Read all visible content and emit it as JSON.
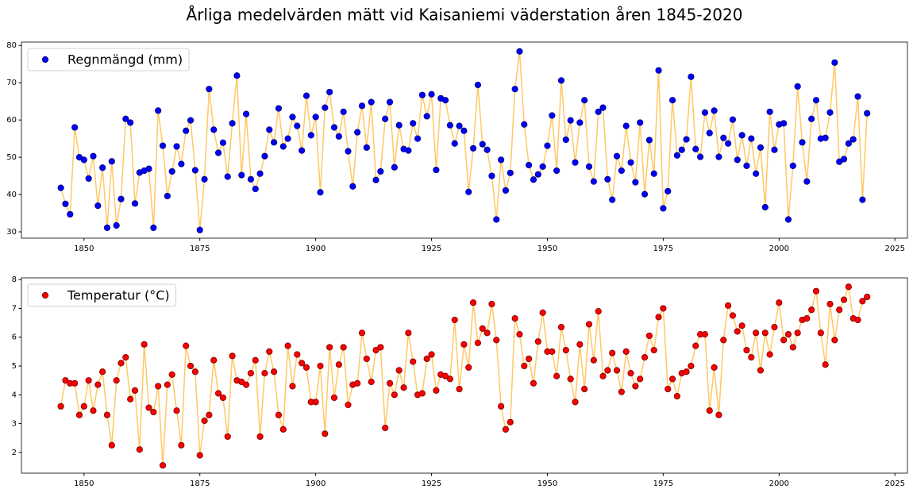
{
  "title": "Årliga medelvärden mätt vid Kaisaniemi väderstation åren 1845-2020",
  "chart_data": [
    {
      "type": "line",
      "legend": "upper left",
      "x": [
        1845,
        1846,
        1847,
        1848,
        1849,
        1850,
        1851,
        1852,
        1853,
        1854,
        1855,
        1856,
        1857,
        1858,
        1859,
        1860,
        1861,
        1862,
        1863,
        1864,
        1865,
        1866,
        1867,
        1868,
        1869,
        1870,
        1871,
        1872,
        1873,
        1874,
        1875,
        1876,
        1877,
        1878,
        1879,
        1880,
        1881,
        1882,
        1883,
        1884,
        1885,
        1886,
        1887,
        1888,
        1889,
        1890,
        1891,
        1892,
        1893,
        1894,
        1895,
        1896,
        1897,
        1898,
        1899,
        1900,
        1901,
        1902,
        1903,
        1904,
        1905,
        1906,
        1907,
        1908,
        1909,
        1910,
        1911,
        1912,
        1913,
        1914,
        1915,
        1916,
        1917,
        1918,
        1919,
        1920,
        1921,
        1922,
        1923,
        1924,
        1925,
        1926,
        1927,
        1928,
        1929,
        1930,
        1931,
        1932,
        1933,
        1934,
        1935,
        1936,
        1937,
        1938,
        1939,
        1940,
        1941,
        1942,
        1943,
        1944,
        1945,
        1946,
        1947,
        1948,
        1949,
        1950,
        1951,
        1952,
        1953,
        1954,
        1955,
        1956,
        1957,
        1958,
        1959,
        1960,
        1961,
        1962,
        1963,
        1964,
        1965,
        1966,
        1967,
        1968,
        1969,
        1970,
        1971,
        1972,
        1973,
        1974,
        1975,
        1976,
        1977,
        1978,
        1979,
        1980,
        1981,
        1982,
        1983,
        1984,
        1985,
        1986,
        1987,
        1988,
        1989,
        1990,
        1991,
        1992,
        1993,
        1994,
        1995,
        1996,
        1997,
        1998,
        1999,
        2000,
        2001,
        2002,
        2003,
        2004,
        2005,
        2006,
        2007,
        2008,
        2009,
        2010,
        2011,
        2012,
        2013,
        2014,
        2015,
        2016,
        2017,
        2018,
        2019
      ],
      "series": [
        {
          "name": "Regnmängd (mm)",
          "color": "#0000ff",
          "edge_color": "#00008b",
          "line_color": "#ffc864",
          "values": [
            41.8,
            37.5,
            34.7,
            58,
            50,
            49.3,
            44.3,
            50.3,
            37,
            47.2,
            31.1,
            48.9,
            31.7,
            38.8,
            60.3,
            59.3,
            37.6,
            45.9,
            46.4,
            46.9,
            31.1,
            62.5,
            53.1,
            39.6,
            46.2,
            52.9,
            48.2,
            57.1,
            59.9,
            46.5,
            30.5,
            44.1,
            68.3,
            57.4,
            51.2,
            53.9,
            44.8,
            59.1,
            71.9,
            45.2,
            61.6,
            44.1,
            41.5,
            45.6,
            50.3,
            57.4,
            54,
            63.1,
            52.9,
            55,
            60.8,
            58.4,
            51.8,
            66.5,
            55.9,
            60.8,
            40.6,
            63.3,
            67.5,
            58,
            55.6,
            62.2,
            51.6,
            42.2,
            56.7,
            63.8,
            52.6,
            64.8,
            43.9,
            46.2,
            60.3,
            64.8,
            47.3,
            58.6,
            52.2,
            51.8,
            59.1,
            55,
            66.7,
            61,
            66.9,
            46.6,
            65.8,
            65.3,
            58.6,
            53.7,
            58.4,
            57.1,
            40.7,
            52.4,
            69.4,
            53.5,
            52,
            45,
            33.3,
            49.3,
            41.1,
            45.8,
            68.3,
            78.4,
            58.8,
            47.9,
            44,
            45.4,
            47.5,
            53.1,
            61.2,
            46.4,
            70.6,
            54.7,
            59.9,
            48.6,
            59.3,
            65.3,
            47.5,
            43.5,
            62.2,
            63.3,
            44.1,
            38.6,
            50.3,
            46.4,
            58.4,
            48.6,
            43.3,
            59.3,
            40.1,
            54.6,
            45.6,
            73.3,
            36.3,
            40.9,
            65.3,
            50.5,
            52,
            54.8,
            71.6,
            52.2,
            50.1,
            62,
            56.5,
            62.5,
            50.1,
            55.2,
            53.7,
            60.1,
            49.3,
            55.9,
            47.7,
            55,
            45.6,
            52.6,
            36.6,
            62.2,
            52,
            58.8,
            59.1,
            33.3,
            47.7,
            69,
            54,
            43.5,
            60.3,
            65.3,
            55,
            55.2,
            62,
            75.4,
            48.8,
            49.5,
            53.7,
            54.8,
            66.3,
            38.6,
            61.8
          ]
        }
      ],
      "xlim": [
        1836.5,
        2027.7
      ],
      "xticks": [
        1850,
        1875,
        1900,
        1925,
        1950,
        1975,
        2000,
        2025
      ],
      "ylim": [
        28.3,
        80.9
      ],
      "yticks": [
        30,
        40,
        50,
        60,
        70,
        80
      ]
    },
    {
      "type": "line",
      "legend": "upper left",
      "x": [
        1845,
        1846,
        1847,
        1848,
        1849,
        1850,
        1851,
        1852,
        1853,
        1854,
        1855,
        1856,
        1857,
        1858,
        1859,
        1860,
        1861,
        1862,
        1863,
        1864,
        1865,
        1866,
        1867,
        1868,
        1869,
        1870,
        1871,
        1872,
        1873,
        1874,
        1875,
        1876,
        1877,
        1878,
        1879,
        1880,
        1881,
        1882,
        1883,
        1884,
        1885,
        1886,
        1887,
        1888,
        1889,
        1890,
        1891,
        1892,
        1893,
        1894,
        1895,
        1896,
        1897,
        1898,
        1899,
        1900,
        1901,
        1902,
        1903,
        1904,
        1905,
        1906,
        1907,
        1908,
        1909,
        1910,
        1911,
        1912,
        1913,
        1914,
        1915,
        1916,
        1917,
        1918,
        1919,
        1920,
        1921,
        1922,
        1923,
        1924,
        1925,
        1926,
        1927,
        1928,
        1929,
        1930,
        1931,
        1932,
        1933,
        1934,
        1935,
        1936,
        1937,
        1938,
        1939,
        1940,
        1941,
        1942,
        1943,
        1944,
        1945,
        1946,
        1947,
        1948,
        1949,
        1950,
        1951,
        1952,
        1953,
        1954,
        1955,
        1956,
        1957,
        1958,
        1959,
        1960,
        1961,
        1962,
        1963,
        1964,
        1965,
        1966,
        1967,
        1968,
        1969,
        1970,
        1971,
        1972,
        1973,
        1974,
        1975,
        1976,
        1977,
        1978,
        1979,
        1980,
        1981,
        1982,
        1983,
        1984,
        1985,
        1986,
        1987,
        1988,
        1989,
        1990,
        1991,
        1992,
        1993,
        1994,
        1995,
        1996,
        1997,
        1998,
        1999,
        2000,
        2001,
        2002,
        2003,
        2004,
        2005,
        2006,
        2007,
        2008,
        2009,
        2010,
        2011,
        2012,
        2013,
        2014,
        2015,
        2016,
        2017,
        2018,
        2019
      ],
      "series": [
        {
          "name": "Temperatur (°C)",
          "color": "#ff0000",
          "edge_color": "#8b0000",
          "line_color": "#ffc864",
          "values": [
            3.6,
            4.5,
            4.4,
            4.4,
            3.3,
            3.6,
            4.5,
            3.45,
            4.35,
            4.8,
            3.3,
            2.25,
            4.5,
            5.1,
            5.3,
            3.85,
            4.15,
            2.1,
            5.75,
            3.55,
            3.4,
            4.3,
            1.55,
            4.35,
            4.7,
            3.45,
            2.25,
            5.7,
            5.0,
            4.8,
            1.9,
            3.1,
            3.3,
            5.2,
            4.05,
            3.9,
            2.55,
            5.35,
            4.5,
            4.45,
            4.35,
            4.75,
            5.2,
            2.55,
            4.75,
            5.5,
            4.8,
            3.3,
            2.8,
            5.7,
            4.3,
            5.4,
            5.1,
            4.95,
            3.75,
            3.75,
            5.0,
            2.65,
            5.65,
            3.9,
            5.05,
            5.65,
            3.65,
            4.35,
            4.4,
            6.15,
            5.25,
            4.45,
            5.55,
            5.65,
            2.85,
            4.4,
            4.0,
            4.85,
            4.25,
            6.15,
            5.15,
            4.0,
            4.05,
            5.25,
            5.4,
            4.15,
            4.7,
            4.65,
            4.55,
            6.6,
            4.2,
            5.75,
            4.95,
            7.2,
            5.8,
            6.3,
            6.15,
            7.15,
            5.9,
            3.6,
            2.8,
            3.05,
            6.65,
            6.1,
            5.0,
            5.25,
            4.4,
            5.85,
            6.85,
            5.5,
            5.5,
            4.65,
            6.35,
            5.55,
            4.55,
            3.75,
            5.75,
            4.2,
            6.45,
            5.2,
            6.9,
            4.65,
            4.85,
            5.45,
            4.85,
            4.1,
            5.5,
            4.75,
            4.3,
            4.55,
            5.3,
            6.05,
            5.55,
            6.7,
            7.0,
            4.2,
            4.55,
            3.95,
            4.75,
            4.8,
            5.0,
            5.7,
            6.1,
            6.1,
            3.45,
            4.95,
            3.3,
            5.9,
            7.1,
            6.75,
            6.2,
            6.4,
            5.55,
            5.3,
            6.15,
            4.85,
            6.15,
            5.4,
            6.35,
            7.2,
            5.9,
            6.1,
            5.65,
            6.15,
            6.6,
            6.65,
            6.95,
            7.6,
            6.15,
            5.05,
            7.15,
            5.9,
            6.95,
            7.3,
            7.75,
            6.65,
            6.6,
            7.25,
            7.4
          ]
        }
      ],
      "xlim": [
        1836.5,
        2027.7
      ],
      "xticks": [
        1850,
        1875,
        1900,
        1925,
        1950,
        1975,
        2000,
        2025
      ],
      "ylim": [
        1.28,
        8.06
      ],
      "yticks": [
        2,
        3,
        4,
        5,
        6,
        7,
        8
      ]
    }
  ]
}
